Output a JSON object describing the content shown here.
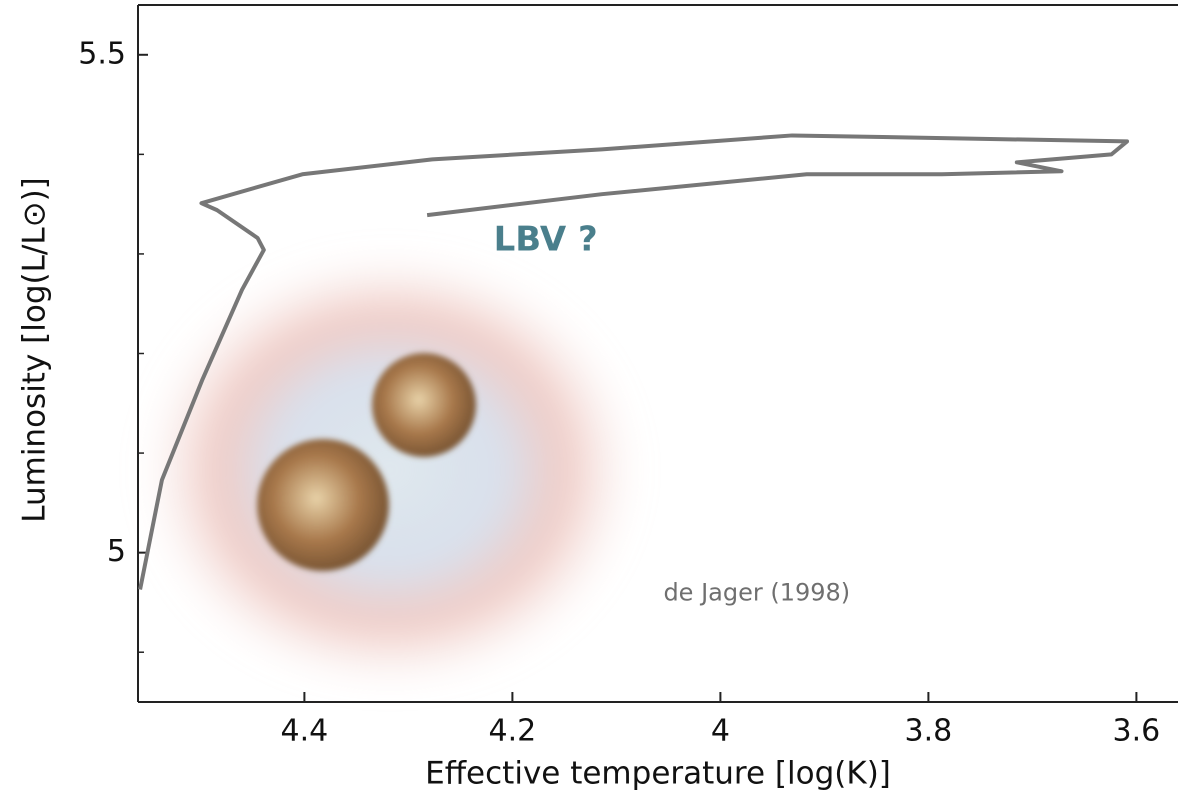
{
  "chart_data": {
    "type": "line",
    "xlabel": "Effective temperature [log(K)]",
    "ylabel": "Luminosity [log(L/L⊙)]",
    "xlim": [
      4.56,
      3.56
    ],
    "ylim": [
      4.85,
      5.55
    ],
    "xticks": [
      4.4,
      4.2,
      4.0,
      3.8,
      3.6
    ],
    "yticks": [
      5.0,
      5.5
    ],
    "yminorticks": [
      4.9,
      5.1,
      5.2,
      5.3,
      5.4
    ],
    "series": [
      {
        "color": "#777777",
        "x": [
          4.558,
          4.537,
          4.498,
          4.46,
          4.439,
          4.445,
          4.484,
          4.499,
          4.402,
          4.277,
          4.114,
          3.931,
          3.609,
          3.624,
          3.715,
          3.672,
          3.787,
          3.917,
          4.114,
          4.282
        ],
        "values": [
          4.963,
          5.073,
          5.174,
          5.264,
          5.304,
          5.316,
          5.344,
          5.351,
          5.38,
          5.395,
          5.405,
          5.419,
          5.413,
          5.4,
          5.392,
          5.383,
          5.38,
          5.38,
          5.36,
          5.339
        ]
      }
    ],
    "annotations": [
      {
        "text": "LBV ?",
        "x": 4.168,
        "y": 5.313,
        "color": "#4a7f8c"
      },
      {
        "text": "de Jager (1998)",
        "x": 3.965,
        "y": 4.959,
        "color": "#6f6f6f"
      }
    ]
  }
}
